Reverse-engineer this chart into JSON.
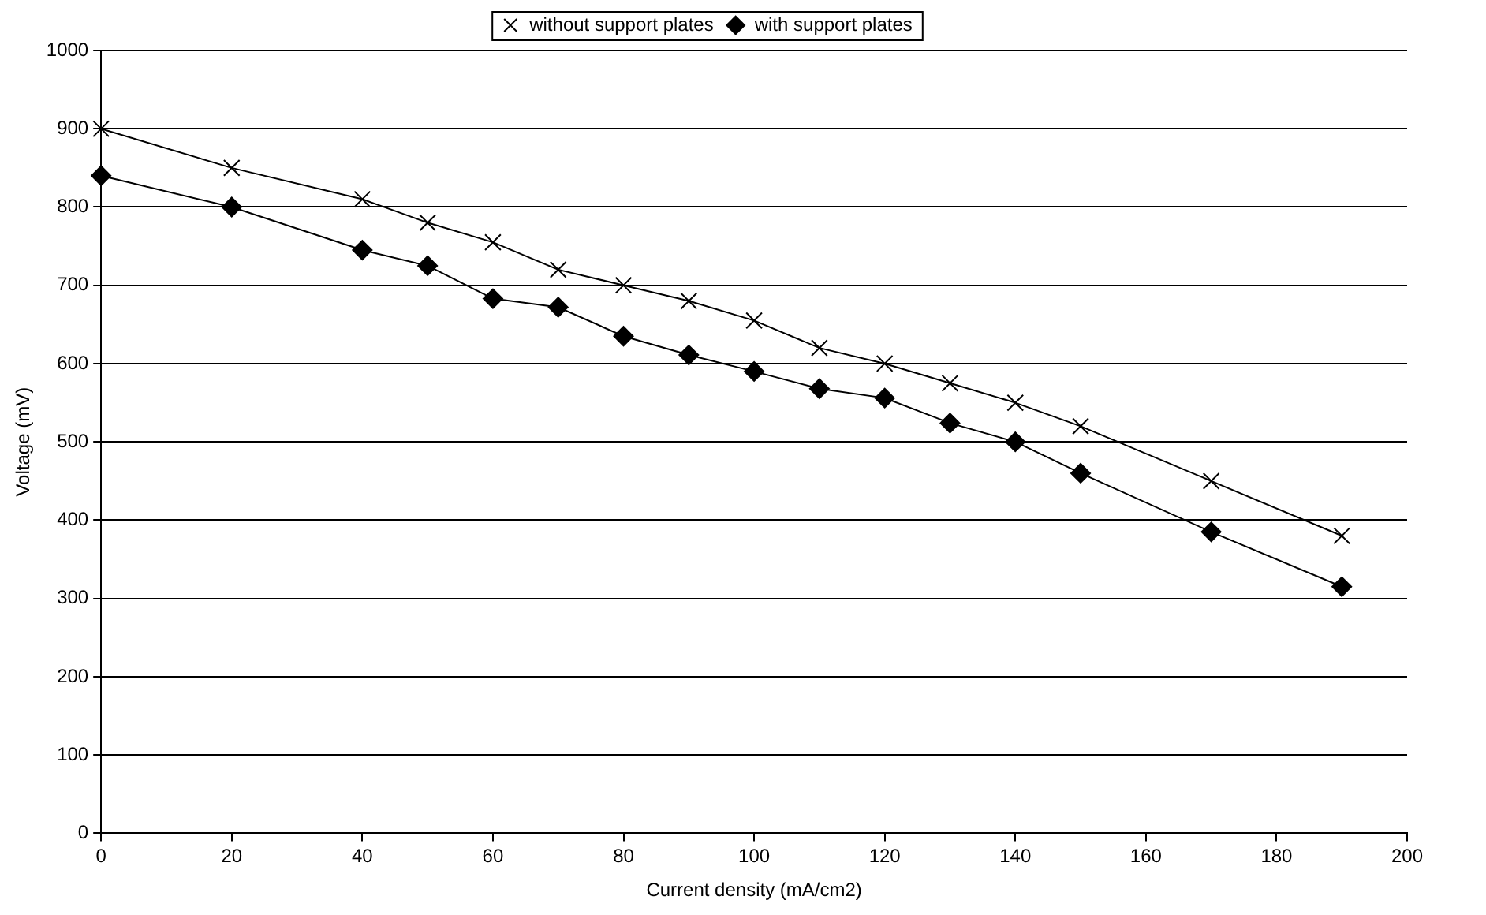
{
  "chart_data": {
    "type": "line",
    "xlabel": "Current density (mA/cm2)",
    "ylabel": "Voltage (mV)",
    "x": [
      0,
      20,
      40,
      50,
      60,
      70,
      80,
      90,
      100,
      110,
      120,
      130,
      140,
      150,
      170,
      190
    ],
    "series": [
      {
        "name": "without support plates",
        "color": "#000000",
        "marker": "cross",
        "values": [
          900,
          850,
          810,
          780,
          755,
          720,
          700,
          680,
          655,
          620,
          600,
          575,
          550,
          520,
          450,
          380
        ]
      },
      {
        "name": "with support plates",
        "color": "#000000",
        "marker": "diamond",
        "values": [
          840,
          800,
          745,
          725,
          683,
          672,
          635,
          611,
          590,
          568,
          556,
          524,
          500,
          460,
          385,
          315
        ]
      }
    ],
    "xlim": [
      0,
      200
    ],
    "xticks": [
      0,
      20,
      40,
      60,
      80,
      100,
      120,
      140,
      160,
      180,
      200
    ],
    "ylim": [
      0,
      1000
    ],
    "yticks": [
      0,
      100,
      200,
      300,
      400,
      500,
      600,
      700,
      800,
      900,
      1000
    ],
    "grid": "y",
    "legend": "top",
    "line_style": "solid"
  }
}
